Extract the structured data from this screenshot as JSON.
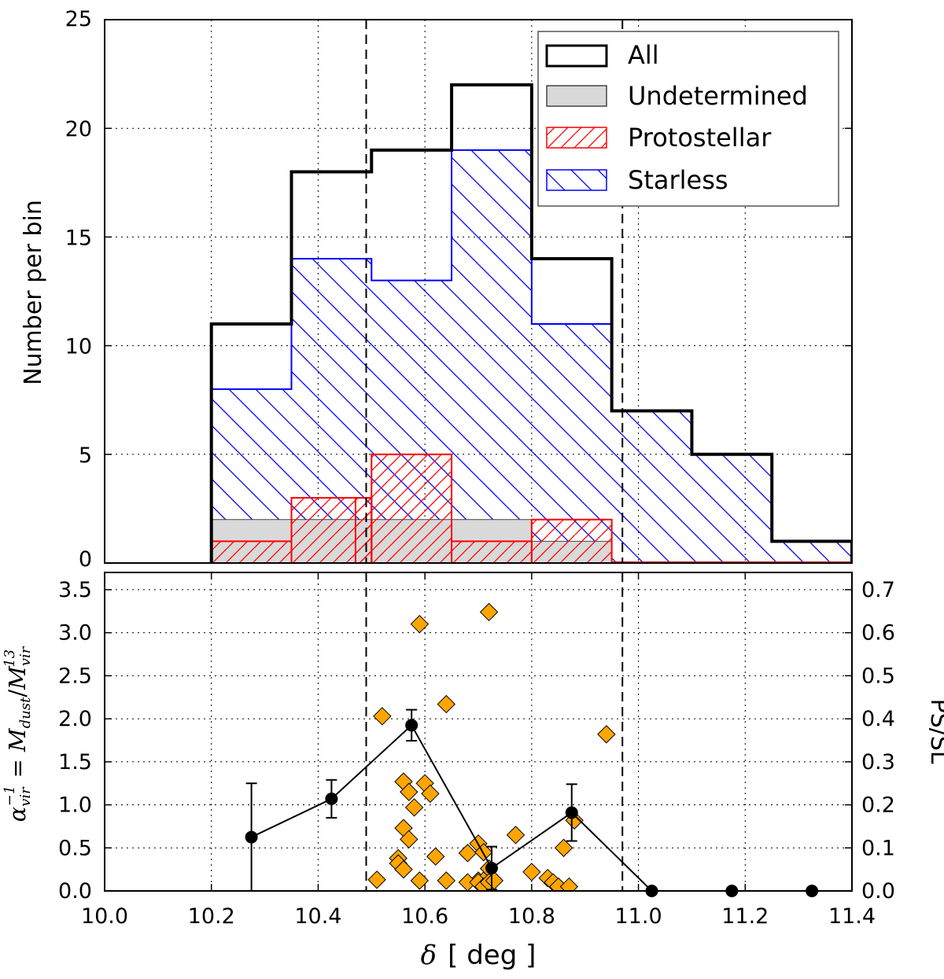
{
  "chart_data": [
    {
      "type": "histogram",
      "ylabel": "Number per bin",
      "xlim": [
        10.0,
        11.4
      ],
      "ylim": [
        0,
        25
      ],
      "yticks": [
        0,
        5,
        10,
        15,
        20,
        25
      ],
      "xgrid": [
        10.2,
        10.4,
        10.6,
        10.8,
        11.0,
        11.2
      ],
      "bin_edges": [
        10.2,
        10.35,
        10.5,
        10.65,
        10.8,
        10.95,
        11.1,
        11.25,
        11.4
      ],
      "series": [
        {
          "name": "All",
          "style": "step",
          "color": "#000000",
          "values": [
            11,
            18,
            19,
            22,
            14,
            7,
            5,
            1
          ]
        },
        {
          "name": "Undetermined",
          "style": "fill",
          "color": "#d9d9d9",
          "values": [
            2,
            2,
            2,
            2,
            1,
            0,
            0,
            0
          ]
        },
        {
          "name": "Protostellar",
          "style": "hatch",
          "color": "#ff0000",
          "values": [
            1,
            3,
            5,
            1,
            2,
            0,
            0,
            0
          ]
        },
        {
          "name": "Starless",
          "style": "hatch",
          "color": "#0000ff",
          "values": [
            8,
            14,
            13,
            19,
            11,
            7,
            5,
            1
          ]
        }
      ],
      "protostellar_extra": {
        "x_start": 10.47,
        "x_end": 10.5,
        "value": 3
      },
      "all_extra": {
        "x_start": 10.49,
        "x_end": 10.5,
        "value": 18
      },
      "vlines": [
        10.49,
        10.97
      ],
      "legend_position": "top-right"
    },
    {
      "type": "scatter",
      "xlabel": "δ  [ deg ]",
      "xlabel_symbol": "δ",
      "xlabel_unit": "[ deg ]",
      "ylabel": "α_vir^-1 = M_dust / M_vir^13",
      "y2label": "PS/SL",
      "xlim": [
        10.0,
        11.4
      ],
      "xticks": [
        10.0,
        10.2,
        10.4,
        10.6,
        10.8,
        11.0,
        11.2,
        11.4
      ],
      "xtick_labels": [
        "10.0",
        "10.2",
        "10.4",
        "10.6",
        "10.8",
        "11.0",
        "11.2",
        "11.4"
      ],
      "ylim": [
        0,
        3.7
      ],
      "yticks": [
        0.0,
        0.5,
        1.0,
        1.5,
        2.0,
        2.5,
        3.0,
        3.5
      ],
      "ytick_labels": [
        "0.0",
        "0.5",
        "1.0",
        "1.5",
        "2.0",
        "2.5",
        "3.0",
        "3.5"
      ],
      "y2lim": [
        0,
        0.74
      ],
      "y2ticks": [
        0.0,
        0.1,
        0.2,
        0.3,
        0.4,
        0.5,
        0.6,
        0.7
      ],
      "y2tick_labels": [
        "0.0",
        "0.1",
        "0.2",
        "0.3",
        "0.4",
        "0.5",
        "0.6",
        "0.7"
      ],
      "vlines": [
        10.49,
        10.97
      ],
      "points": {
        "name": "alpha_vir^-1",
        "marker": "diamond",
        "color": "#ffa500",
        "x": [
          10.52,
          10.51,
          10.56,
          10.57,
          10.55,
          10.55,
          10.56,
          10.56,
          10.57,
          10.58,
          10.6,
          10.59,
          10.61,
          10.62,
          10.59,
          10.64,
          10.64,
          10.68,
          10.7,
          10.7,
          10.71,
          10.71,
          10.72,
          10.68,
          10.7,
          10.71,
          10.72,
          10.73,
          10.77,
          10.8,
          10.83,
          10.84,
          10.85,
          10.86,
          10.87,
          10.88,
          10.94,
          10.72
        ],
        "y": [
          2.03,
          0.13,
          0.73,
          0.6,
          0.38,
          0.32,
          0.25,
          1.27,
          1.15,
          0.97,
          1.25,
          3.1,
          1.13,
          0.4,
          0.12,
          2.17,
          0.12,
          0.44,
          0.55,
          0.12,
          0.12,
          0.45,
          0.26,
          0.1,
          0.1,
          0.05,
          0.1,
          0.12,
          0.65,
          0.22,
          0.15,
          0.1,
          0.05,
          0.5,
          0.05,
          0.82,
          1.82,
          3.24
        ]
      },
      "ratio": {
        "name": "PS/SL",
        "marker": "circle",
        "color": "#000000",
        "x": [
          10.275,
          10.425,
          10.575,
          10.725,
          10.875,
          11.025,
          11.175,
          11.325
        ],
        "y": [
          0.125,
          0.214,
          0.385,
          0.053,
          0.182,
          0.0,
          0.0,
          0.0
        ],
        "err": [
          0.125,
          0.044,
          0.036,
          0.05,
          0.066,
          0.0,
          0.0,
          0.0
        ]
      }
    }
  ],
  "legend": {
    "all_label": "All",
    "undetermined_label": "Undetermined",
    "protostellar_label": "Protostellar",
    "starless_label": "Starless"
  },
  "labels": {
    "top_ylabel": "Number per bin",
    "y2label": "PS/SL",
    "xlabel_symbol": "δ",
    "xlabel_unit": "[ deg ]",
    "ylabel_alpha": "α",
    "ylabel_alpha_sub": "vir",
    "ylabel_alpha_sup": "−1",
    "ylabel_eq": " = ",
    "ylabel_m1": "M",
    "ylabel_m1_sub": "dust",
    "ylabel_slash": "/",
    "ylabel_m2": "M",
    "ylabel_m2_sub": "vir",
    "ylabel_m2_sup": "13"
  }
}
